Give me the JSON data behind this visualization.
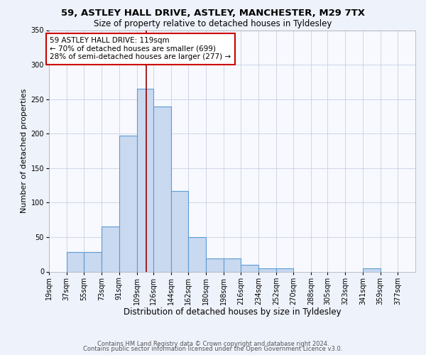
{
  "title": "59, ASTLEY HALL DRIVE, ASTLEY, MANCHESTER, M29 7TX",
  "subtitle": "Size of property relative to detached houses in Tyldesley",
  "xlabel": "Distribution of detached houses by size in Tyldesley",
  "ylabel": "Number of detached properties",
  "footer_line1": "Contains HM Land Registry data © Crown copyright and database right 2024.",
  "footer_line2": "Contains public sector information licensed under the Open Government Licence v3.0.",
  "bin_labels": [
    "19sqm",
    "37sqm",
    "55sqm",
    "73sqm",
    "91sqm",
    "109sqm",
    "126sqm",
    "144sqm",
    "162sqm",
    "180sqm",
    "198sqm",
    "216sqm",
    "234sqm",
    "252sqm",
    "270sqm",
    "288sqm",
    "305sqm",
    "323sqm",
    "341sqm",
    "359sqm",
    "377sqm"
  ],
  "bar_heights": [
    0,
    28,
    28,
    65,
    197,
    265,
    239,
    117,
    50,
    19,
    19,
    10,
    5,
    5,
    0,
    0,
    0,
    0,
    5,
    0,
    0
  ],
  "bar_color": "#c9d9f0",
  "bar_edge_color": "#5b9bd5",
  "bar_edge_width": 0.8,
  "vline_x": 119,
  "vline_color": "#990000",
  "annotation_line1": "59 ASTLEY HALL DRIVE: 119sqm",
  "annotation_line2": "← 70% of detached houses are smaller (699)",
  "annotation_line3": "28% of semi-detached houses are larger (277) →",
  "annotation_box_color": "#ffffff",
  "annotation_box_edge_color": "#cc0000",
  "ylim": [
    0,
    350
  ],
  "yticks": [
    0,
    50,
    100,
    150,
    200,
    250,
    300,
    350
  ],
  "bg_color": "#eef2fb",
  "plot_bg_color": "#f7f9ff",
  "grid_color": "#c8d0e0",
  "title_fontsize": 9.5,
  "subtitle_fontsize": 8.5,
  "xlabel_fontsize": 8.5,
  "ylabel_fontsize": 8,
  "tick_fontsize": 7,
  "annotation_fontsize": 7.5,
  "footer_fontsize": 6,
  "bin_edges": [
    19,
    37,
    55,
    73,
    91,
    109,
    126,
    144,
    162,
    180,
    198,
    216,
    234,
    252,
    270,
    288,
    305,
    323,
    341,
    359,
    377,
    395
  ]
}
